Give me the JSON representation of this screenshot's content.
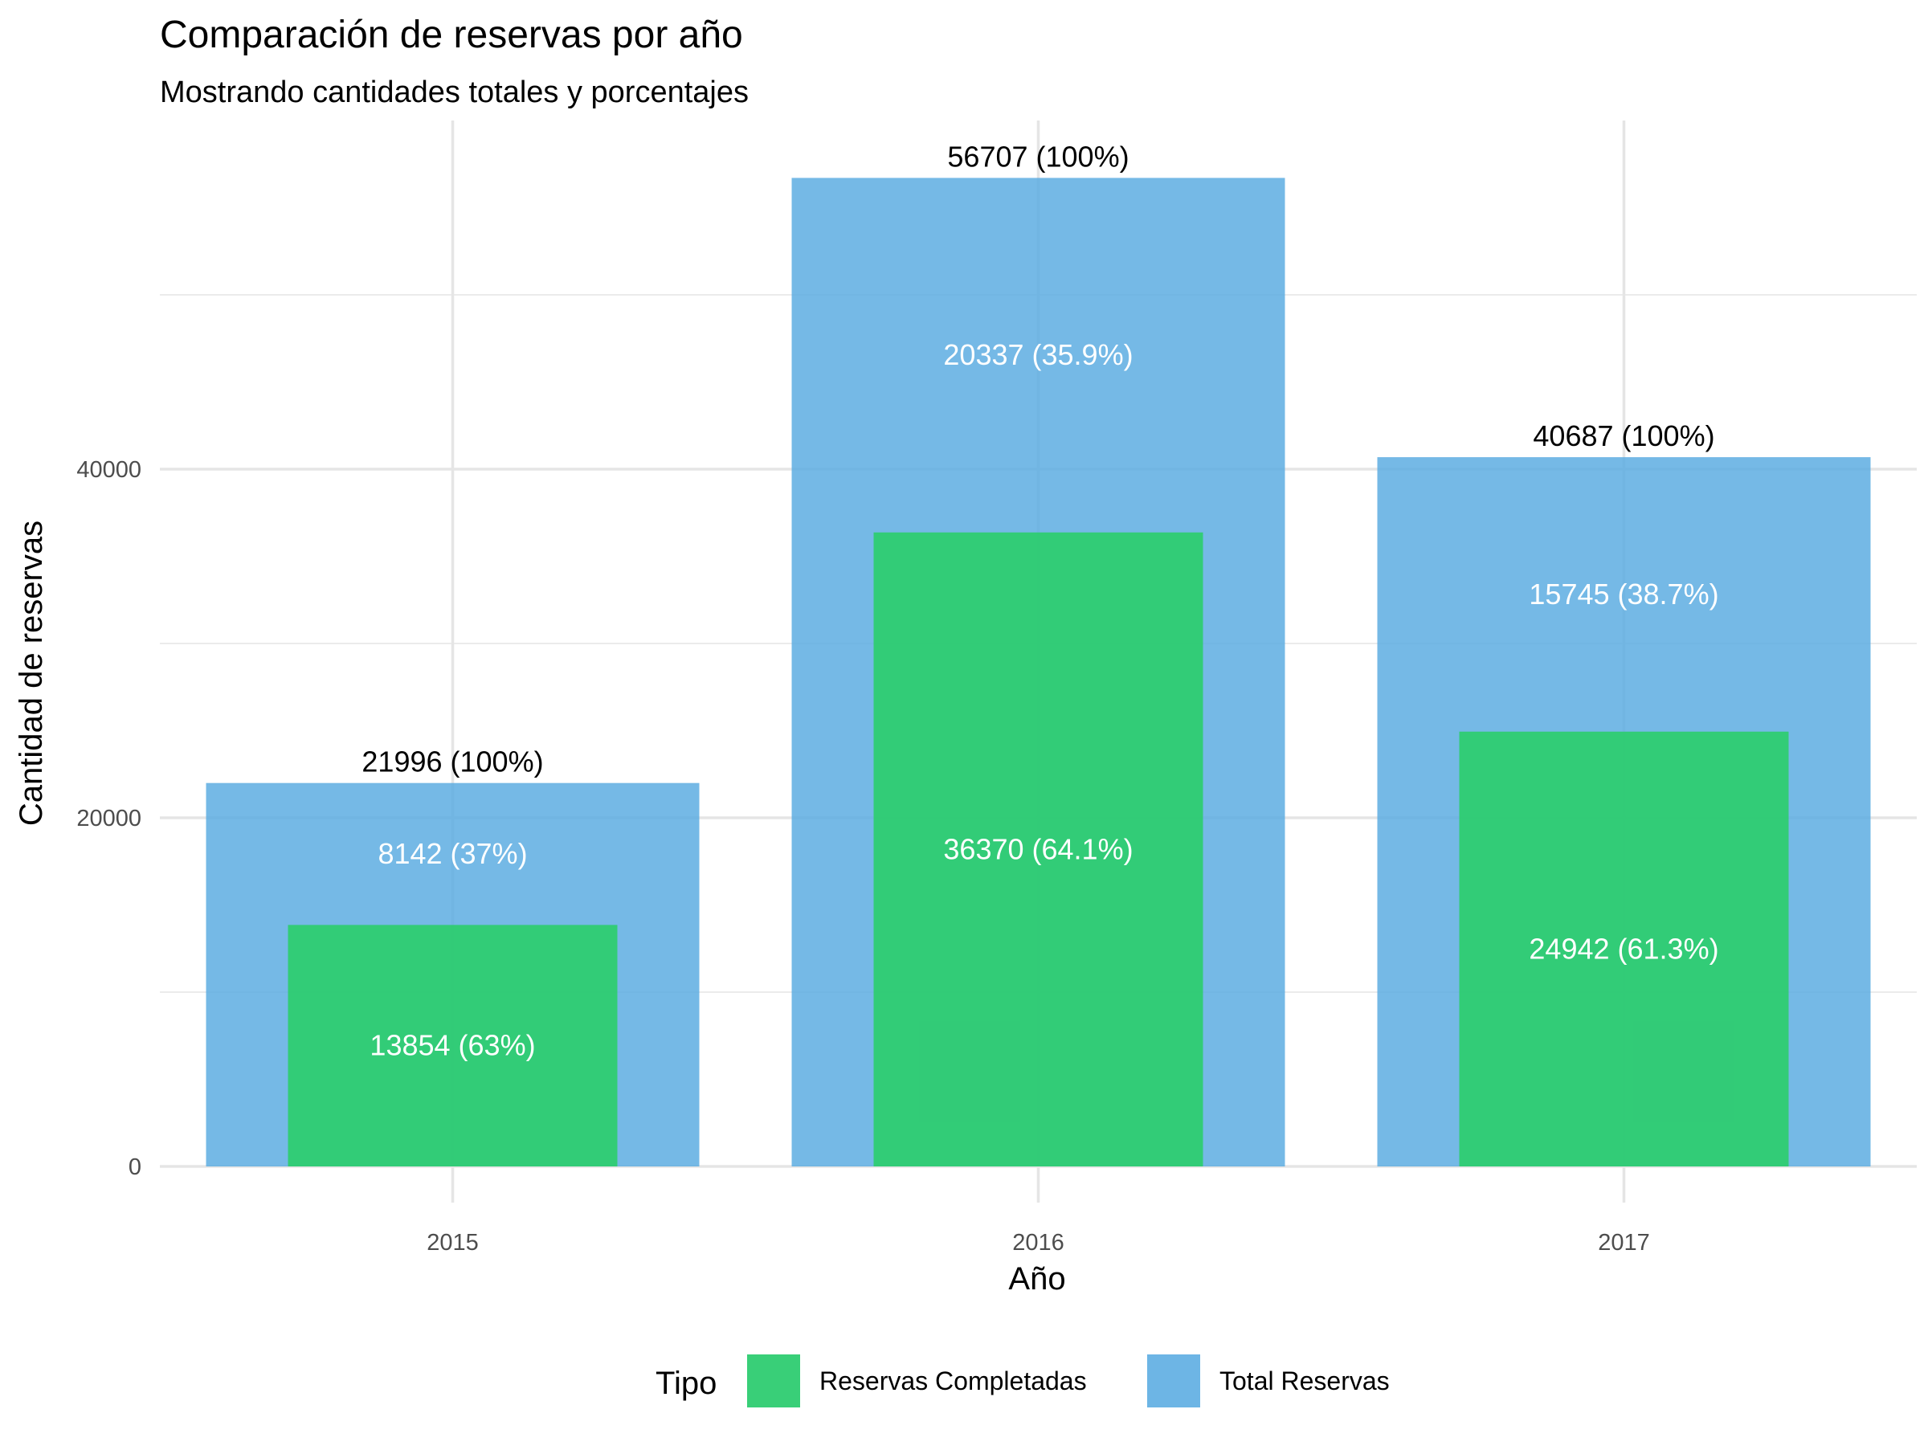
{
  "chart_data": {
    "type": "bar",
    "title": "Comparación de reservas por año",
    "subtitle": "Mostrando cantidades totales y porcentajes",
    "xlabel": "Año",
    "ylabel": "Cantidad de reservas",
    "categories": [
      "2015",
      "2016",
      "2017"
    ],
    "ylim": [
      0,
      57000
    ],
    "yticks": [
      0,
      20000,
      40000
    ],
    "grid": true,
    "series": [
      {
        "name": "Total Reservas",
        "color": "#5DADE2",
        "values": [
          21996,
          56707,
          40687
        ],
        "labels": [
          "21996 (100%)",
          "56707 (100%)",
          "40687 (100%)"
        ]
      },
      {
        "name": "Reservas Completadas",
        "color": "#2ECC71",
        "values": [
          13854,
          36370,
          24942
        ],
        "labels": [
          "13854 (63%)",
          "36370 (64.1%)",
          "24942 (61.3%)"
        ]
      }
    ],
    "annotations": [
      {
        "category": "2015",
        "value": 8142,
        "text": "8142 (37%)"
      },
      {
        "category": "2016",
        "value": 20337,
        "text": "20337 (35.9%)"
      },
      {
        "category": "2017",
        "value": 15745,
        "text": "15745 (38.7%)"
      }
    ],
    "legend": {
      "title": "Tipo",
      "position": "bottom",
      "items": [
        {
          "label": "Reservas Completadas",
          "color": "#2ECC71"
        },
        {
          "label": "Total Reservas",
          "color": "#5DADE2"
        }
      ]
    }
  }
}
